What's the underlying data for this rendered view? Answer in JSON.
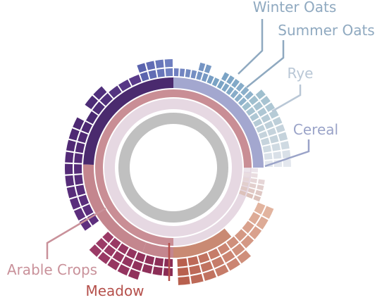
{
  "chart_data": {
    "type": "sunburst",
    "title": "",
    "labels": {
      "winter_oats": "Winter Oats",
      "summer_oats": "Summer Oats",
      "rye": "Rye",
      "cereal": "Cereal",
      "arable_crops": "Arable Crops",
      "meadow": "Meadow"
    },
    "segments": [
      {
        "key": "cereal",
        "fraction": 0.25,
        "color": "#a3a7cf",
        "children": [
          {
            "key": "winter_oats",
            "fraction": 0.15,
            "color": "#7c9fc4"
          },
          {
            "key": "summer_oats",
            "fraction": 0.05,
            "color": "#8fb2cb"
          },
          {
            "key": "rye",
            "fraction": 0.05,
            "color": "#b7cbd8"
          }
        ]
      },
      {
        "key": "meadow",
        "fraction": 0.25,
        "color": "#c99e93",
        "children": [
          {
            "key": "meadow_light",
            "fraction": 0.1,
            "color": "#dcc1ba"
          },
          {
            "key": "meadow_mid",
            "fraction": 0.15,
            "color": "#c97f66"
          }
        ]
      },
      {
        "key": "arable_crops",
        "fraction": 0.5,
        "color": "#c4868e",
        "children": [
          {
            "key": "arable_dark",
            "fraction": 0.18,
            "color": "#8a2c55"
          },
          {
            "key": "arable_purple",
            "fraction": 0.32,
            "color": "#5a2a7a"
          }
        ]
      }
    ],
    "colors": {
      "inner_ring": "#c0c0c0",
      "second_ring": "#e6d8e2",
      "third_ring": "#c98e95",
      "cereal_ring": "#a3a7cf",
      "label_blue": "#8fa9c0",
      "label_rye": "#b9c7d6",
      "label_cereal": "#9aa3c8",
      "label_arable": "#c9919a",
      "label_meadow": "#b5504b"
    }
  }
}
